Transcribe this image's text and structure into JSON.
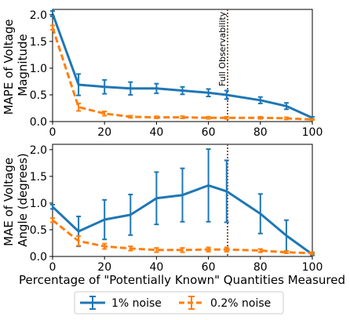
{
  "figure": {
    "xlabel": "Percentage of \"Potentially Known\" Quantities Measured",
    "annotation": "Full Observability",
    "legend": {
      "placement": "bottom-center",
      "entries": [
        "1% noise",
        "0.2% noise"
      ]
    },
    "colors": {
      "noise_1pct": "#1f77b4",
      "noise_02pct": "#ff7f0e",
      "observability_line": "#8c564b"
    }
  },
  "chart_data": [
    {
      "type": "line",
      "ylabel": "MAPE of Voltage\nMagnitude",
      "xlim": [
        0,
        100
      ],
      "ylim": [
        0,
        2.1
      ],
      "xticks": [
        0,
        20,
        40,
        60,
        80,
        100
      ],
      "yticks": [
        0.0,
        0.5,
        1.0,
        1.5,
        2.0
      ],
      "full_observability_x": 67,
      "grid": false,
      "series": [
        {
          "name": "1% noise",
          "style": "solid",
          "x": [
            0,
            10,
            20,
            30,
            40,
            50,
            60,
            67,
            80,
            90,
            100
          ],
          "y": [
            2.02,
            0.69,
            0.65,
            0.62,
            0.62,
            0.58,
            0.54,
            0.5,
            0.4,
            0.29,
            0.07
          ],
          "err": [
            0.05,
            0.2,
            0.13,
            0.12,
            0.09,
            0.07,
            0.07,
            0.08,
            0.06,
            0.06,
            0.02
          ]
        },
        {
          "name": "0.2% noise",
          "style": "dashed",
          "x": [
            0,
            10,
            20,
            30,
            40,
            50,
            60,
            67,
            80,
            90,
            100
          ],
          "y": [
            1.76,
            0.27,
            0.15,
            0.09,
            0.08,
            0.08,
            0.07,
            0.07,
            0.07,
            0.06,
            0.04
          ],
          "err": [
            0.04,
            0.07,
            0.04,
            0.02,
            0.02,
            0.02,
            0.02,
            0.02,
            0.02,
            0.02,
            0.01
          ]
        }
      ]
    },
    {
      "type": "line",
      "ylabel": "MAE of Voltage\nAngle (degrees)",
      "xlim": [
        0,
        100
      ],
      "ylim": [
        0,
        2.1
      ],
      "xticks": [
        0,
        20,
        40,
        60,
        80,
        100
      ],
      "yticks": [
        0.0,
        0.5,
        1.0,
        1.5,
        2.0
      ],
      "full_observability_x": 67,
      "grid": false,
      "series": [
        {
          "name": "1% noise",
          "style": "solid",
          "x": [
            0,
            10,
            20,
            30,
            40,
            50,
            60,
            67,
            80,
            90,
            100
          ],
          "y": [
            0.93,
            0.47,
            0.69,
            0.78,
            1.09,
            1.15,
            1.33,
            1.22,
            0.8,
            0.39,
            0.04
          ],
          "err": [
            0.04,
            0.28,
            0.37,
            0.38,
            0.49,
            0.5,
            0.68,
            0.58,
            0.37,
            0.29,
            0.02
          ]
        },
        {
          "name": "0.2% noise",
          "style": "dashed",
          "x": [
            0,
            10,
            20,
            30,
            40,
            50,
            60,
            67,
            80,
            90,
            100
          ],
          "y": [
            0.68,
            0.29,
            0.19,
            0.15,
            0.12,
            0.12,
            0.13,
            0.13,
            0.11,
            0.08,
            0.06
          ],
          "err": [
            0.04,
            0.09,
            0.05,
            0.04,
            0.04,
            0.04,
            0.04,
            0.04,
            0.03,
            0.02,
            0.02
          ]
        }
      ]
    }
  ]
}
